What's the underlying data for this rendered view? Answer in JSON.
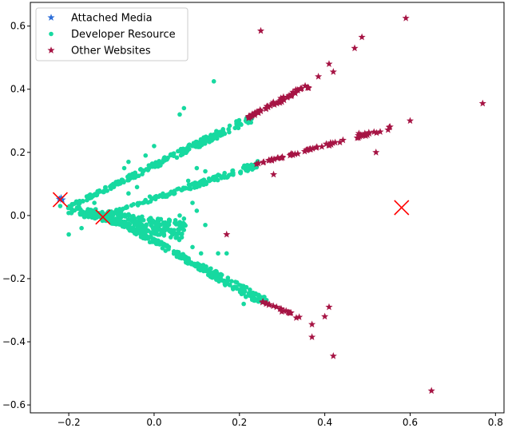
{
  "chart_data": {
    "type": "scatter",
    "title": "",
    "xlabel": "",
    "ylabel": "",
    "xlim": [
      -0.29,
      0.82
    ],
    "ylim": [
      -0.625,
      0.675
    ],
    "xticks": [
      -0.2,
      0.0,
      0.2,
      0.4,
      0.6,
      0.8
    ],
    "xtick_labels": [
      "−0.2",
      "0.0",
      "0.2",
      "0.4",
      "0.6",
      "0.8"
    ],
    "yticks": [
      -0.6,
      -0.4,
      -0.2,
      0.0,
      0.2,
      0.4,
      0.6
    ],
    "ytick_labels": [
      "−0.6",
      "−0.4",
      "−0.2",
      "0.0",
      "0.2",
      "0.4",
      "0.6"
    ],
    "grid": false,
    "legend_position": "top-left",
    "series": [
      {
        "name": "Attached Media",
        "marker": "star",
        "color": "#2e6fd9",
        "points": [
          [
            -0.222,
            0.052
          ],
          [
            -0.218,
            0.056
          ],
          [
            -0.215,
            0.05
          ]
        ]
      },
      {
        "name": "Developer Resource",
        "marker": "circle",
        "color": "#17d9a0",
        "branches": [
          {
            "from": [
              -0.21,
              0.02
            ],
            "to": [
              0.23,
              0.31
            ],
            "count": 240,
            "spread": 0.012
          },
          {
            "from": [
              -0.12,
              0.0
            ],
            "to": [
              0.25,
              0.165
            ],
            "count": 150,
            "spread": 0.01
          },
          {
            "from": [
              -0.11,
              0.0
            ],
            "to": [
              0.26,
              -0.275
            ],
            "count": 280,
            "spread": 0.014
          },
          {
            "from": [
              -0.2,
              0.02
            ],
            "to": [
              0.07,
              -0.05
            ],
            "count": 260,
            "spread": 0.03
          }
        ],
        "points": [
          [
            0.14,
            0.425
          ],
          [
            0.07,
            0.34
          ],
          [
            0.06,
            0.32
          ],
          [
            0.0,
            0.22
          ],
          [
            -0.02,
            0.19
          ],
          [
            -0.06,
            0.17
          ],
          [
            -0.07,
            0.15
          ],
          [
            0.1,
            0.15
          ],
          [
            0.12,
            0.14
          ],
          [
            0.08,
            0.11
          ],
          [
            0.09,
            0.1
          ],
          [
            0.04,
            0.075
          ],
          [
            0.03,
            0.06
          ],
          [
            -0.01,
            0.06
          ],
          [
            -0.04,
            0.09
          ],
          [
            -0.06,
            0.07
          ],
          [
            -0.14,
            0.04
          ],
          [
            -0.22,
            0.03
          ],
          [
            -0.2,
            -0.06
          ],
          [
            -0.17,
            -0.04
          ],
          [
            0.09,
            0.04
          ],
          [
            0.1,
            0.015
          ],
          [
            0.07,
            -0.01
          ],
          [
            0.11,
            -0.12
          ],
          [
            0.2,
            -0.22
          ],
          [
            0.21,
            -0.28
          ],
          [
            0.17,
            -0.12
          ],
          [
            0.09,
            -0.1
          ],
          [
            0.15,
            -0.12
          ],
          [
            0.12,
            -0.03
          ],
          [
            0.05,
            -0.015
          ],
          [
            0.06,
            0.0
          ]
        ]
      },
      {
        "name": "Other Websites",
        "marker": "star",
        "color": "#a61444",
        "branches": [
          {
            "from": [
              0.22,
              0.31
            ],
            "to": [
              0.36,
              0.41
            ],
            "count": 60,
            "spread": 0.008
          },
          {
            "from": [
              0.24,
              0.163
            ],
            "to": [
              0.56,
              0.28
            ],
            "count": 60,
            "spread": 0.005
          },
          {
            "from": [
              0.25,
              -0.27
            ],
            "to": [
              0.34,
              -0.325
            ],
            "count": 20,
            "spread": 0.005
          }
        ],
        "points": [
          [
            0.25,
            0.585
          ],
          [
            0.59,
            0.625
          ],
          [
            0.487,
            0.565
          ],
          [
            0.47,
            0.53
          ],
          [
            0.41,
            0.48
          ],
          [
            0.42,
            0.455
          ],
          [
            0.385,
            0.44
          ],
          [
            0.77,
            0.355
          ],
          [
            0.6,
            0.3
          ],
          [
            0.48,
            0.26
          ],
          [
            0.5,
            0.255
          ],
          [
            0.52,
            0.2
          ],
          [
            0.28,
            0.13
          ],
          [
            0.17,
            -0.06
          ],
          [
            0.37,
            -0.345
          ],
          [
            0.37,
            -0.385
          ],
          [
            0.41,
            -0.29
          ],
          [
            0.4,
            -0.32
          ],
          [
            0.42,
            -0.445
          ],
          [
            0.65,
            -0.555
          ]
        ]
      }
    ],
    "annotations": [
      {
        "marker": "x",
        "color": "#ff0000",
        "position": [
          -0.22,
          0.05
        ]
      },
      {
        "marker": "x",
        "color": "#ff0000",
        "position": [
          -0.12,
          -0.005
        ]
      },
      {
        "marker": "x",
        "color": "#ff0000",
        "position": [
          0.58,
          0.025
        ]
      }
    ]
  }
}
